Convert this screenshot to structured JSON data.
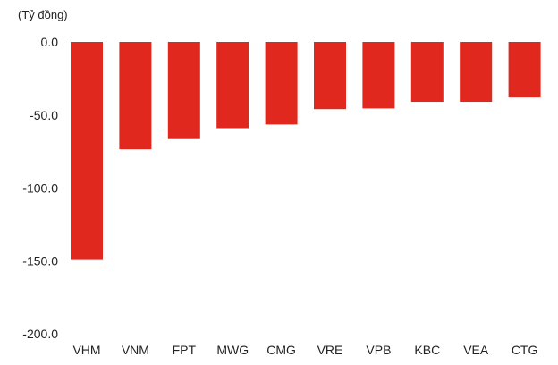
{
  "chart_data": {
    "type": "bar",
    "unit_label": "(Tỷ đồng)",
    "categories": [
      "VHM",
      "VNM",
      "FPT",
      "MWG",
      "CMG",
      "VRE",
      "VPB",
      "KBC",
      "VEA",
      "CTG"
    ],
    "values": [
      -149,
      -73.5,
      -66.5,
      -59,
      -56.5,
      -46,
      -45.5,
      -41,
      -41,
      -38
    ],
    "ylim": [
      -200,
      0
    ],
    "yticks": [
      "0.0",
      "-50.0",
      "-100.0",
      "-150.0",
      "-200.0"
    ],
    "ytick_values": [
      0,
      -50,
      -100,
      -150,
      -200
    ],
    "grid": false,
    "bar_color": "#E0281E"
  }
}
